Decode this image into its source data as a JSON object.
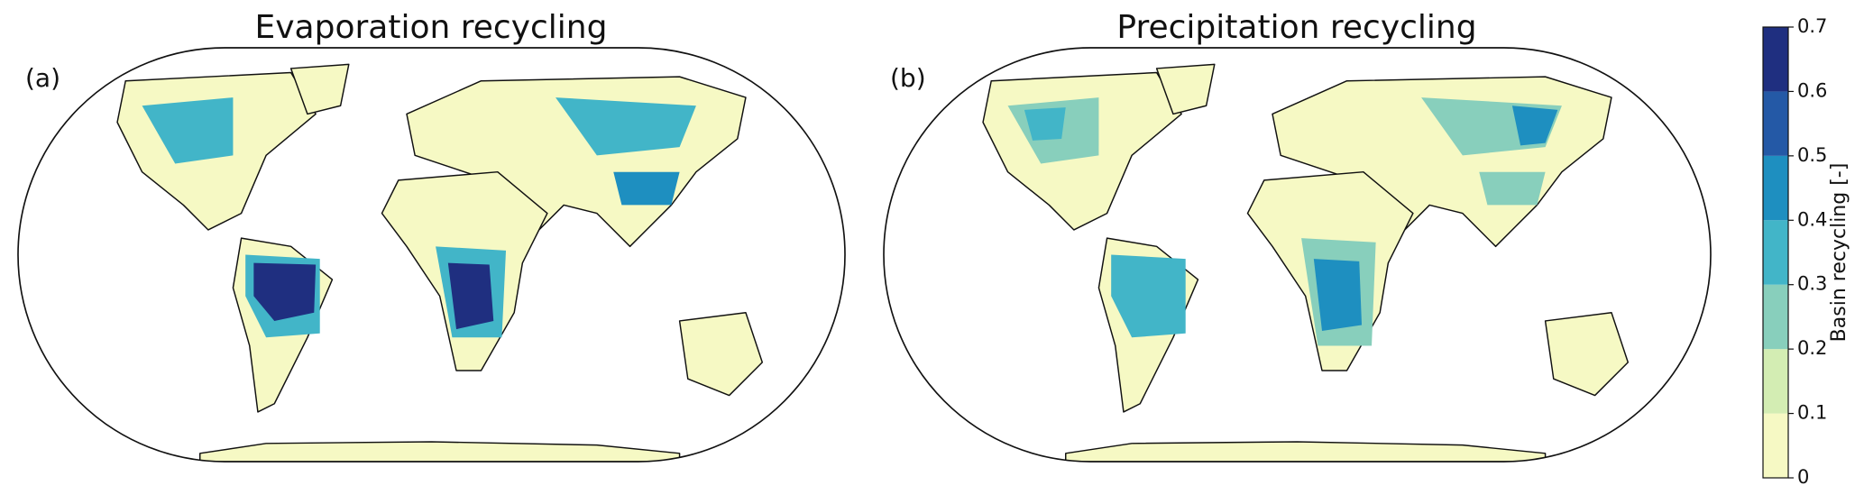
{
  "maps": [
    {
      "panel_label": "(a)",
      "title": "Evaporation recycling"
    },
    {
      "panel_label": "(b)",
      "title": "Precipitation recycling"
    }
  ],
  "colorbar": {
    "label": "Basin recycling [-]",
    "lim": [
      0,
      0.7
    ],
    "ticks": [
      0,
      0.1,
      0.2,
      0.3,
      0.4,
      0.5,
      0.6,
      0.7
    ],
    "colors": [
      "#f6f9c4",
      "#d3edb3",
      "#88cfbc",
      "#42b5c8",
      "#1e8fc0",
      "#2459a6",
      "#1f2f80"
    ]
  }
}
